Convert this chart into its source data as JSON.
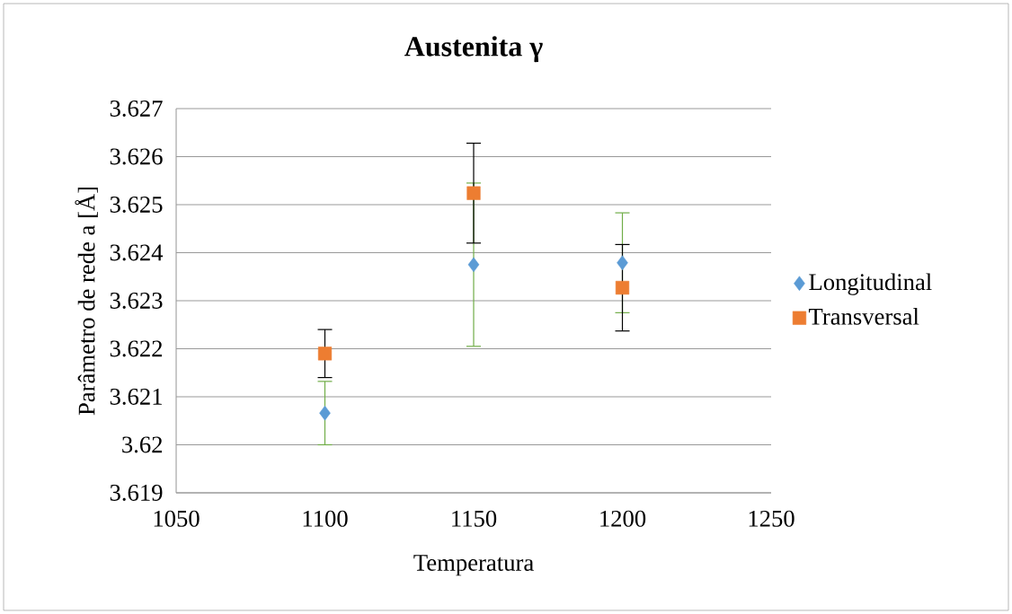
{
  "chart_data": {
    "type": "scatter",
    "title": "Austenita γ",
    "xlabel": "Temperatura",
    "ylabel": "Parâmetro de rede a  [Å]",
    "x": [
      1100,
      1150,
      1200
    ],
    "series": [
      {
        "name": "Longitudinal",
        "color": "#5b9bd5",
        "marker": "diamond",
        "values": [
          3.62066,
          3.62375,
          3.62379
        ],
        "errors": [
          0.00066,
          0.0017,
          0.00104
        ]
      },
      {
        "name": "Transversal",
        "color": "#ed7d31",
        "marker": "square",
        "values": [
          3.6219,
          3.62524,
          3.62327
        ],
        "errors": [
          0.0005,
          0.00104,
          0.0009
        ]
      }
    ],
    "xlim": [
      1050,
      1250
    ],
    "xticks": [
      1050,
      1100,
      1150,
      1200,
      1250
    ],
    "ylim": [
      3.619,
      3.627
    ],
    "yticks": [
      3.619,
      3.62,
      3.621,
      3.622,
      3.623,
      3.624,
      3.625,
      3.626,
      3.627
    ],
    "grid": "y",
    "legend": "right"
  }
}
